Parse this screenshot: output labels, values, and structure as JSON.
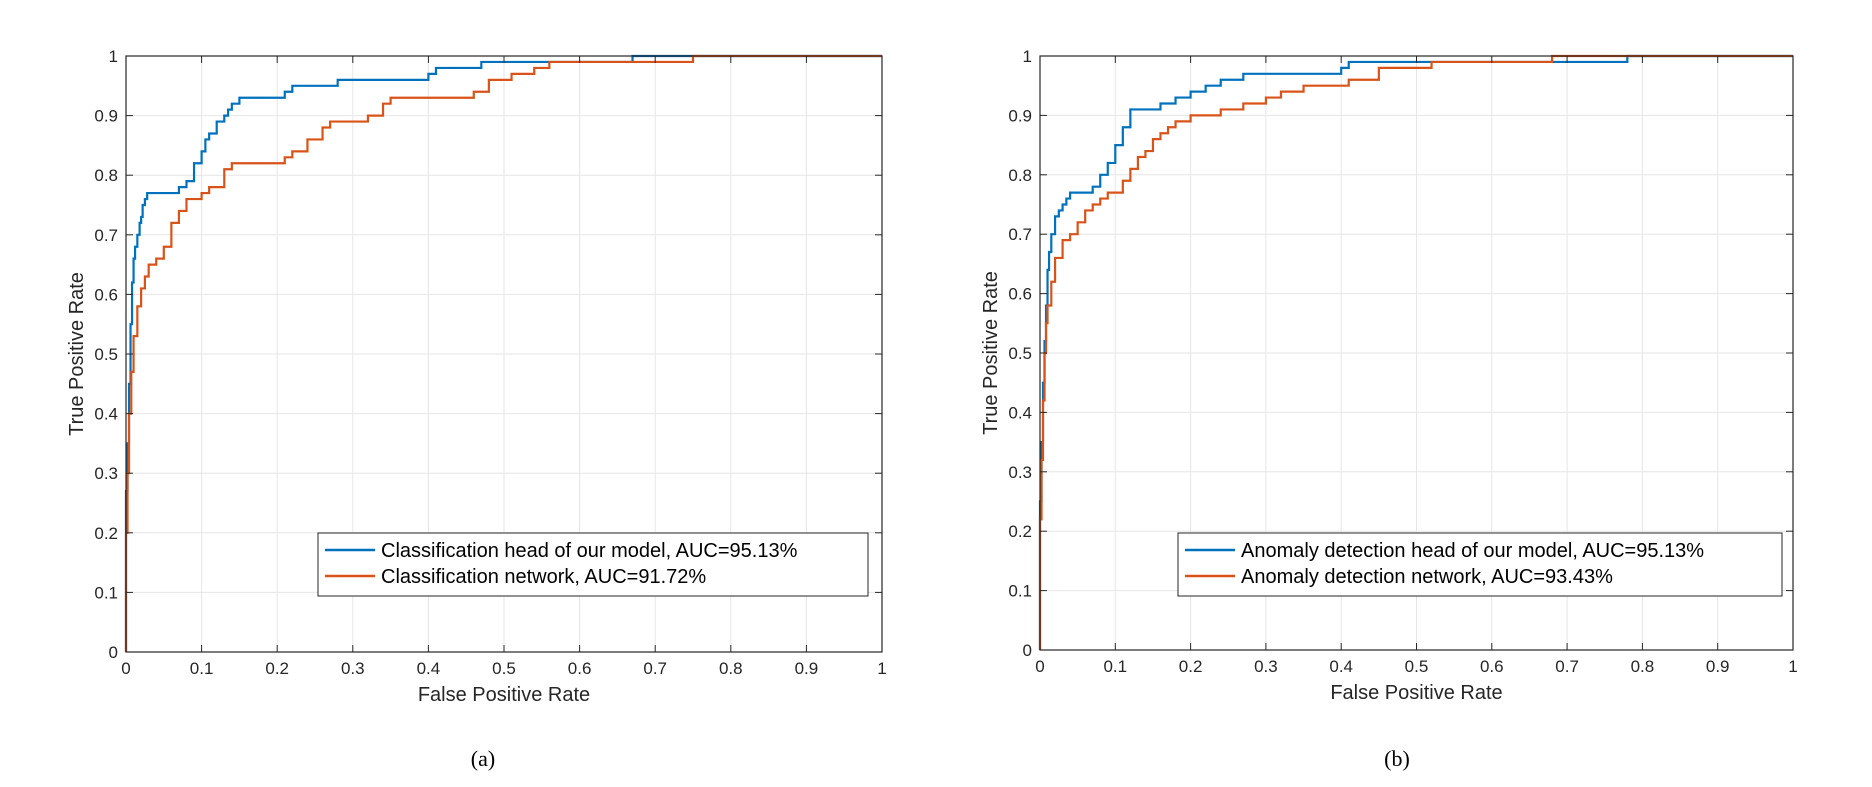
{
  "chart_data": [
    {
      "type": "line",
      "caption": "(a)",
      "xlabel": "False Positive Rate",
      "ylabel": "True Positive Rate",
      "xlim": [
        0,
        1
      ],
      "ylim": [
        0,
        1
      ],
      "xticks": [
        "0",
        "0.1",
        "0.2",
        "0.3",
        "0.4",
        "0.5",
        "0.6",
        "0.7",
        "0.8",
        "0.9",
        "1"
      ],
      "yticks": [
        "0",
        "0.1",
        "0.2",
        "0.3",
        "0.4",
        "0.5",
        "0.6",
        "0.7",
        "0.8",
        "0.9",
        "1"
      ],
      "grid": true,
      "legend_position": "bottom-right",
      "series": [
        {
          "name": "Classification head of our model, AUC=95.13%",
          "color": "#0072BD",
          "x": [
            0,
            0,
            0.002,
            0.004,
            0.006,
            0.008,
            0.01,
            0.012,
            0.015,
            0.018,
            0.02,
            0.022,
            0.025,
            0.028,
            0.03,
            0.035,
            0.07,
            0.08,
            0.09,
            0.1,
            0.105,
            0.11,
            0.12,
            0.13,
            0.135,
            0.14,
            0.15,
            0.21,
            0.22,
            0.28,
            0.4,
            0.41,
            0.47,
            0.56,
            0.67,
            0.75,
            1
          ],
          "y": [
            0,
            0.27,
            0.35,
            0.45,
            0.55,
            0.62,
            0.66,
            0.68,
            0.7,
            0.72,
            0.73,
            0.75,
            0.76,
            0.77,
            0.77,
            0.77,
            0.78,
            0.79,
            0.82,
            0.84,
            0.86,
            0.87,
            0.89,
            0.9,
            0.91,
            0.92,
            0.93,
            0.94,
            0.95,
            0.96,
            0.97,
            0.98,
            0.99,
            0.99,
            1.0,
            1.0,
            1.0
          ]
        },
        {
          "name": "Classification network, AUC=91.72%",
          "color": "#D95319",
          "x": [
            0,
            0,
            0.002,
            0.004,
            0.007,
            0.01,
            0.015,
            0.02,
            0.025,
            0.03,
            0.04,
            0.05,
            0.06,
            0.07,
            0.08,
            0.1,
            0.11,
            0.13,
            0.14,
            0.15,
            0.21,
            0.22,
            0.24,
            0.26,
            0.27,
            0.32,
            0.34,
            0.35,
            0.46,
            0.48,
            0.51,
            0.54,
            0.56,
            0.74,
            0.75,
            1
          ],
          "y": [
            0,
            0.2,
            0.3,
            0.4,
            0.47,
            0.53,
            0.58,
            0.61,
            0.63,
            0.65,
            0.66,
            0.68,
            0.72,
            0.74,
            0.76,
            0.77,
            0.78,
            0.81,
            0.82,
            0.82,
            0.83,
            0.84,
            0.86,
            0.88,
            0.89,
            0.9,
            0.92,
            0.93,
            0.94,
            0.96,
            0.97,
            0.98,
            0.99,
            0.99,
            1.0,
            1.0
          ]
        }
      ]
    },
    {
      "type": "line",
      "caption": "(b)",
      "xlabel": "False Positive Rate",
      "ylabel": "True Positive Rate",
      "xlim": [
        0,
        1
      ],
      "ylim": [
        0,
        1
      ],
      "xticks": [
        "0",
        "0.1",
        "0.2",
        "0.3",
        "0.4",
        "0.5",
        "0.6",
        "0.7",
        "0.8",
        "0.9",
        "1"
      ],
      "yticks": [
        "0",
        "0.1",
        "0.2",
        "0.3",
        "0.4",
        "0.5",
        "0.6",
        "0.7",
        "0.8",
        "0.9",
        "1"
      ],
      "grid": true,
      "legend_position": "bottom-right",
      "series": [
        {
          "name": "Anomaly detection head of our model, AUC=95.13%",
          "color": "#0072BD",
          "x": [
            0,
            0,
            0.002,
            0.004,
            0.006,
            0.008,
            0.01,
            0.012,
            0.015,
            0.02,
            0.025,
            0.03,
            0.035,
            0.04,
            0.06,
            0.07,
            0.08,
            0.09,
            0.1,
            0.11,
            0.12,
            0.16,
            0.18,
            0.2,
            0.22,
            0.24,
            0.27,
            0.32,
            0.4,
            0.41,
            0.52,
            0.68,
            0.77,
            0.78,
            1
          ],
          "y": [
            0,
            0.25,
            0.35,
            0.45,
            0.52,
            0.58,
            0.64,
            0.67,
            0.7,
            0.73,
            0.74,
            0.75,
            0.76,
            0.77,
            0.77,
            0.78,
            0.8,
            0.82,
            0.85,
            0.88,
            0.91,
            0.92,
            0.93,
            0.94,
            0.95,
            0.96,
            0.97,
            0.97,
            0.98,
            0.99,
            0.99,
            0.99,
            0.99,
            1.0,
            1.0
          ]
        },
        {
          "name": "Anomaly detection network, AUC=93.43%",
          "color": "#D95319",
          "x": [
            0,
            0,
            0.002,
            0.004,
            0.006,
            0.008,
            0.01,
            0.015,
            0.02,
            0.03,
            0.04,
            0.05,
            0.06,
            0.07,
            0.08,
            0.09,
            0.1,
            0.11,
            0.12,
            0.13,
            0.14,
            0.15,
            0.16,
            0.17,
            0.18,
            0.19,
            0.2,
            0.24,
            0.27,
            0.3,
            0.32,
            0.35,
            0.41,
            0.45,
            0.52,
            0.68,
            1
          ],
          "y": [
            0,
            0.22,
            0.32,
            0.42,
            0.5,
            0.55,
            0.58,
            0.62,
            0.66,
            0.69,
            0.7,
            0.72,
            0.74,
            0.75,
            0.76,
            0.77,
            0.77,
            0.79,
            0.81,
            0.83,
            0.84,
            0.86,
            0.87,
            0.88,
            0.89,
            0.89,
            0.9,
            0.91,
            0.92,
            0.93,
            0.94,
            0.95,
            0.96,
            0.98,
            0.99,
            1.0,
            1.0
          ]
        }
      ]
    }
  ]
}
